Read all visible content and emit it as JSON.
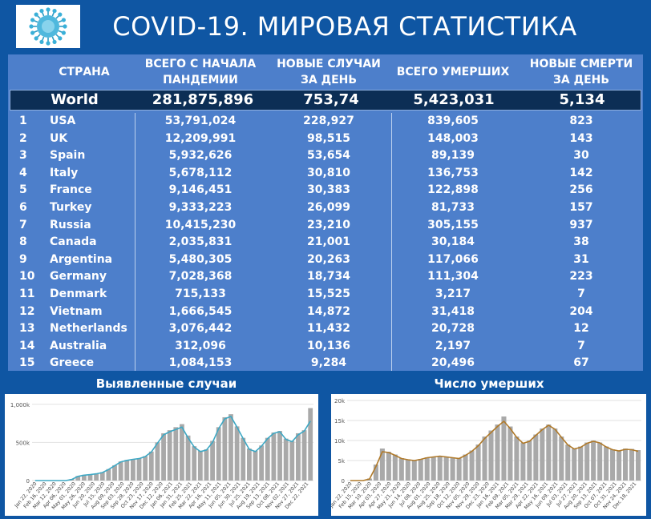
{
  "title": "COVID-19. МИРОВАЯ СТАТИСТИКА",
  "table": {
    "headers": {
      "country": "СТРАНА",
      "total": [
        "ВСЕГО С НАЧАЛА",
        "ПАНДЕМИИ"
      ],
      "new_cases": [
        "НОВЫЕ СЛУЧАИ",
        "ЗА ДЕНЬ"
      ],
      "deaths": "ВСЕГО УМЕРШИХ",
      "new_deaths": [
        "НОВЫЕ СМЕРТИ",
        "ЗА ДЕНЬ"
      ]
    },
    "world": {
      "name": "World",
      "total": "281,875,896",
      "new_cases": "753,74",
      "deaths": "5,423,031",
      "new_deaths": "5,134"
    },
    "rows": [
      {
        "rank": "1",
        "country": "USA",
        "total": "53,791,024",
        "new_cases": "228,927",
        "deaths": "839,605",
        "new_deaths": "823"
      },
      {
        "rank": "2",
        "country": "UK",
        "total": "12,209,991",
        "new_cases": "98,515",
        "deaths": "148,003",
        "new_deaths": "143"
      },
      {
        "rank": "3",
        "country": "Spain",
        "total": "5,932,626",
        "new_cases": "53,654",
        "deaths": "89,139",
        "new_deaths": "30"
      },
      {
        "rank": "4",
        "country": "Italy",
        "total": "5,678,112",
        "new_cases": "30,810",
        "deaths": "136,753",
        "new_deaths": "142"
      },
      {
        "rank": "5",
        "country": "France",
        "total": "9,146,451",
        "new_cases": "30,383",
        "deaths": "122,898",
        "new_deaths": "256"
      },
      {
        "rank": "6",
        "country": "Turkey",
        "total": "9,333,223",
        "new_cases": "26,099",
        "deaths": "81,733",
        "new_deaths": "157"
      },
      {
        "rank": "7",
        "country": "Russia",
        "total": "10,415,230",
        "new_cases": "23,210",
        "deaths": "305,155",
        "new_deaths": "937"
      },
      {
        "rank": "8",
        "country": "Canada",
        "total": "2,035,831",
        "new_cases": "21,001",
        "deaths": "30,184",
        "new_deaths": "38"
      },
      {
        "rank": "9",
        "country": "Argentina",
        "total": "5,480,305",
        "new_cases": "20,263",
        "deaths": "117,066",
        "new_deaths": "31"
      },
      {
        "rank": "10",
        "country": "Germany",
        "total": "7,028,368",
        "new_cases": "18,734",
        "deaths": "111,304",
        "new_deaths": "223"
      },
      {
        "rank": "11",
        "country": "Denmark",
        "total": "715,133",
        "new_cases": "15,525",
        "deaths": "3,217",
        "new_deaths": "7"
      },
      {
        "rank": "12",
        "country": "Vietnam",
        "total": "1,666,545",
        "new_cases": "14,872",
        "deaths": "31,418",
        "new_deaths": "204"
      },
      {
        "rank": "13",
        "country": "Netherlands",
        "total": "3,076,442",
        "new_cases": "11,432",
        "deaths": "20,728",
        "new_deaths": "12"
      },
      {
        "rank": "14",
        "country": "Australia",
        "total": "312,096",
        "new_cases": "10,136",
        "deaths": "2,197",
        "new_deaths": "7"
      },
      {
        "rank": "15",
        "country": "Greece",
        "total": "1,084,153",
        "new_cases": "9,284",
        "deaths": "20,496",
        "new_deaths": "67"
      }
    ]
  },
  "colors": {
    "background": "#0f56a3",
    "table_bg": "#4d7fcb",
    "world_row": "#0c2e55",
    "bars": "#a9a9a9",
    "cases_line": "#3ea8c4",
    "deaths_line": "#b07a2a"
  },
  "icons": {
    "logo": "coronavirus-icon"
  },
  "chart_data": [
    {
      "type": "bar",
      "title": "Выявленные случаи",
      "y_ticks": [
        "0",
        "500k",
        "1,000k"
      ],
      "y_tick_values": [
        0,
        500000,
        1000000
      ],
      "ylim": [
        0,
        1050000
      ],
      "x_tick_labels": [
        "Jan 22, 2020",
        "Feb 16, 2020",
        "Mar 12, 2020",
        "Apr 06, 2020",
        "May 01, 2020",
        "May 26, 2020",
        "Jun 20, 2020",
        "Jul 15, 2020",
        "Aug 09, 2020",
        "Sep 03, 2020",
        "Sep 28, 2020",
        "Oct 23, 2020",
        "Nov 17, 2020",
        "Dec 12, 2020",
        "Jan 06, 2021",
        "Jan 31, 2021",
        "Feb 25, 2021",
        "Mar 22, 2021",
        "Apr 16, 2021",
        "May 11, 2021",
        "Jun 05, 2021",
        "Jun 30, 2021",
        "Jul 25, 2021",
        "Aug 19, 2021",
        "Sep 13, 2021",
        "Oct 08, 2021",
        "Nov 02, 2021",
        "Nov 27, 2021",
        "Dec 22, 2021"
      ],
      "series": [
        {
          "kind": "bar",
          "values": [
            0,
            0,
            0,
            0,
            0,
            0,
            20000,
            60000,
            75000,
            80000,
            90000,
            110000,
            150000,
            200000,
            250000,
            270000,
            280000,
            290000,
            320000,
            380000,
            500000,
            620000,
            660000,
            700000,
            740000,
            590000,
            450000,
            390000,
            410000,
            520000,
            700000,
            830000,
            870000,
            710000,
            560000,
            420000,
            390000,
            460000,
            560000,
            630000,
            650000,
            550000,
            520000,
            620000,
            660000,
            950000
          ]
        },
        {
          "kind": "line",
          "values": [
            0,
            0,
            0,
            0,
            0,
            0,
            15000,
            55000,
            70000,
            78000,
            88000,
            105000,
            145000,
            195000,
            245000,
            265000,
            278000,
            288000,
            315000,
            375000,
            490000,
            600000,
            640000,
            670000,
            700000,
            560000,
            440000,
            380000,
            400000,
            500000,
            680000,
            810000,
            840000,
            700000,
            550000,
            410000,
            380000,
            450000,
            550000,
            620000,
            640000,
            540000,
            510000,
            600000,
            650000,
            780000
          ]
        }
      ]
    },
    {
      "type": "bar",
      "title": "Число умерших",
      "y_ticks": [
        "0",
        "5k",
        "10k",
        "15k",
        "20k"
      ],
      "y_tick_values": [
        0,
        5000,
        10000,
        15000,
        20000
      ],
      "ylim": [
        0,
        20000
      ],
      "x_tick_labels": [
        "Jan 22, 2020",
        "Feb 15, 2020",
        "Mar 10, 2020",
        "Apr 03, 2020",
        "Apr 27, 2020",
        "May 21, 2020",
        "Jun 14, 2020",
        "Jul 08, 2020",
        "Aug 01, 2020",
        "Aug 25, 2020",
        "Sep 18, 2020",
        "Oct 12, 2020",
        "Nov 05, 2020",
        "Nov 29, 2020",
        "Dec 23, 2020",
        "Jan 16, 2021",
        "Feb 09, 2021",
        "Mar 05, 2021",
        "Mar 29, 2021",
        "Apr 22, 2021",
        "May 16, 2021",
        "Jun 09, 2021",
        "Jul 03, 2021",
        "Jul 27, 2021",
        "Aug 20, 2021",
        "Sep 13, 2021",
        "Oct 07, 2021",
        "Oct 31, 2021",
        "Nov 24, 2021",
        "Dec 18, 2021"
      ],
      "series": [
        {
          "kind": "bar",
          "values": [
            0,
            0,
            0,
            500,
            4000,
            8000,
            7200,
            6500,
            5600,
            5300,
            5000,
            5400,
            5800,
            6000,
            6200,
            6000,
            5800,
            5600,
            6500,
            7500,
            9000,
            11000,
            12500,
            14000,
            16000,
            13500,
            11000,
            9500,
            10000,
            11500,
            13000,
            14000,
            13000,
            11000,
            9000,
            8000,
            8500,
            9500,
            10000,
            9500,
            8500,
            7800,
            7500,
            8000,
            7900,
            7600
          ]
        },
        {
          "kind": "line",
          "values": [
            0,
            0,
            0,
            400,
            3500,
            7200,
            7000,
            6300,
            5500,
            5200,
            5000,
            5300,
            5700,
            5900,
            6100,
            5900,
            5700,
            5500,
            6300,
            7300,
            8700,
            10500,
            12000,
            13500,
            14800,
            13000,
            10800,
            9300,
            9800,
            11300,
            12700,
            13800,
            12800,
            10800,
            8900,
            7900,
            8300,
            9300,
            9800,
            9400,
            8400,
            7700,
            7400,
            7800,
            7700,
            7300
          ]
        }
      ]
    }
  ]
}
